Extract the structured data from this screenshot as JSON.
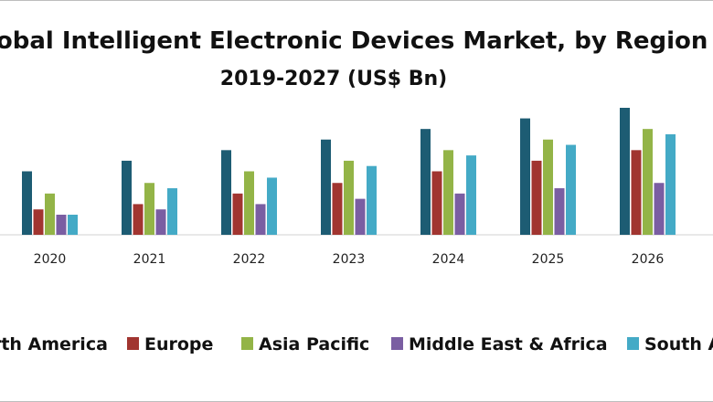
{
  "chart_data": {
    "type": "bar",
    "title": "Global Intelligent Electronic Devices Market, by Region",
    "subtitle": "2019-2027 (US$ Bn)",
    "categories": [
      "2020",
      "2021",
      "2022",
      "2023",
      "2024",
      "2025",
      "2026"
    ],
    "series": [
      {
        "name": "North America",
        "color": "#1d5c73",
        "values": [
          6.0,
          7.0,
          8.0,
          9.0,
          10.0,
          11.0,
          12.0
        ]
      },
      {
        "name": "Europe",
        "color": "#a13530",
        "values": [
          2.4,
          2.9,
          3.9,
          4.9,
          6.0,
          7.0,
          8.0
        ]
      },
      {
        "name": "Asia Pacific",
        "color": "#93b447",
        "values": [
          3.9,
          4.9,
          6.0,
          7.0,
          8.0,
          9.0,
          10.0
        ]
      },
      {
        "name": "Middle East & Africa",
        "color": "#7a5ea2",
        "values": [
          1.9,
          2.4,
          2.9,
          3.4,
          3.9,
          4.4,
          4.9
        ]
      },
      {
        "name": "South America",
        "color": "#44aac6",
        "values": [
          1.9,
          4.4,
          5.4,
          6.5,
          7.5,
          8.5,
          9.5
        ]
      }
    ],
    "xlabel": "",
    "ylabel": "",
    "ylim": [
      0,
      12
    ],
    "grid": false,
    "legend": "bottom"
  }
}
